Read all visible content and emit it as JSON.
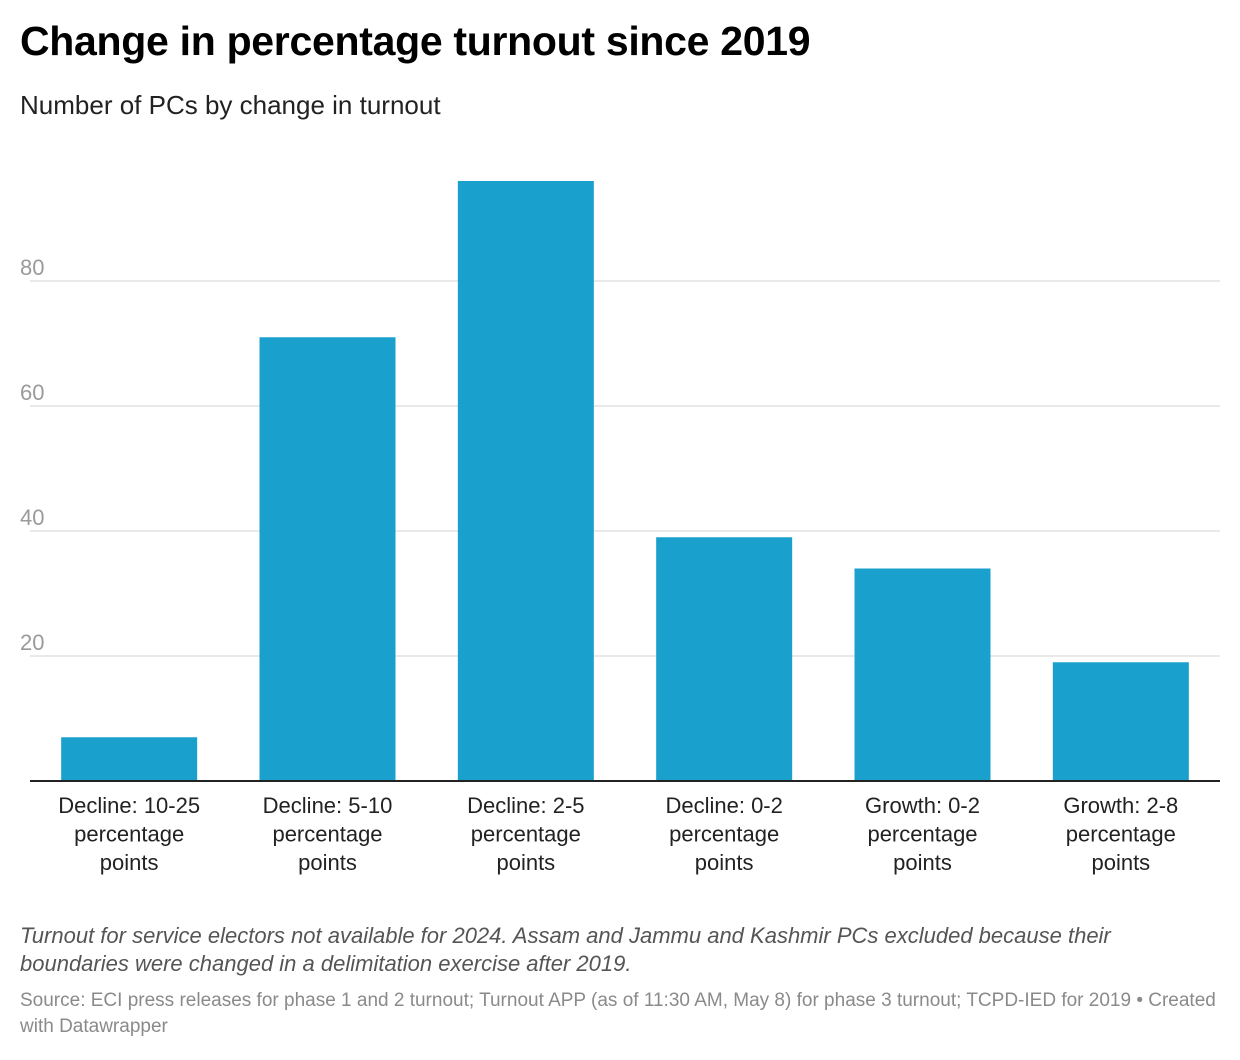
{
  "title": "Change in percentage turnout since 2019",
  "subtitle": "Number of PCs by change in turnout",
  "note": "Turnout for service electors not available for 2024. Assam and Jammu and Kashmir PCs excluded because their boundaries were changed in a delimitation exercise after 2019.",
  "source": "Source: ECI press releases for phase 1 and 2 turnout; Turnout APP (as of 11:30 AM, May 8) for phase 3 turnout; TCPD-IED for 2019 • Created with Datawrapper",
  "colors": {
    "bar": "#1aa0cd",
    "grid": "#e2e2e2",
    "axis": "#222222"
  },
  "chart_data": {
    "type": "bar",
    "title": "Change in percentage turnout since 2019",
    "subtitle": "Number of PCs by change in turnout",
    "xlabel": "",
    "ylabel": "",
    "categories": [
      [
        "Decline: 10-25",
        "percentage",
        "points"
      ],
      [
        "Decline: 5-10",
        "percentage",
        "points"
      ],
      [
        "Decline: 2-5",
        "percentage",
        "points"
      ],
      [
        "Decline: 0-2",
        "percentage",
        "points"
      ],
      [
        "Growth: 0-2",
        "percentage",
        "points"
      ],
      [
        "Growth: 2-8",
        "percentage",
        "points"
      ]
    ],
    "values": [
      7,
      71,
      96,
      39,
      34,
      19
    ],
    "yticks": [
      20,
      40,
      60,
      80
    ],
    "ylim": [
      0,
      100
    ],
    "grid": true,
    "legend": "none"
  }
}
